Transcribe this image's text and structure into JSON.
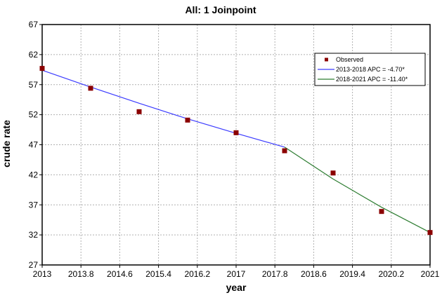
{
  "chart_data": {
    "type": "line",
    "title": "All: 1 Joinpoint",
    "xlabel": "year",
    "ylabel": "crude rate",
    "xlim": [
      2013,
      2021
    ],
    "ylim": [
      27,
      67
    ],
    "x_ticks": [
      2013,
      2013.8,
      2014.6,
      2015.4,
      2016.2,
      2017,
      2017.8,
      2018.6,
      2019.4,
      2020.2,
      2021
    ],
    "x_tick_labels": [
      "2013",
      "2013.8",
      "2014.6",
      "2015.4",
      "2016.2",
      "2017",
      "2017.8",
      "2018.6",
      "2019.4",
      "2020.2",
      "2021"
    ],
    "y_ticks": [
      27,
      32,
      37,
      42,
      47,
      52,
      57,
      62,
      67
    ],
    "y_tick_labels": [
      "27",
      "32",
      "37",
      "42",
      "47",
      "52",
      "57",
      "62",
      "67"
    ],
    "grid": true,
    "legend_position": "top-right",
    "series": [
      {
        "name": "Observed",
        "kind": "scatter",
        "color": "#8b0000",
        "x": [
          2013,
          2014,
          2015,
          2016,
          2017,
          2018,
          2019,
          2020,
          2021
        ],
        "y": [
          59.7,
          56.4,
          52.5,
          51.1,
          49.0,
          46.0,
          42.3,
          35.9,
          32.4
        ]
      },
      {
        "name": "2013-2018 APC =  -4.70*",
        "kind": "line",
        "color": "#3b3bff",
        "x": [
          2013,
          2014,
          2015,
          2016,
          2017,
          2018
        ],
        "y": [
          59.4,
          56.6,
          53.9,
          51.3,
          48.9,
          46.6
        ]
      },
      {
        "name": "2018-2021 APC = -11.40*",
        "kind": "line",
        "color": "#2e7d32",
        "x": [
          2018,
          2019,
          2020,
          2021
        ],
        "y": [
          46.6,
          41.3,
          36.6,
          32.4
        ]
      }
    ]
  }
}
